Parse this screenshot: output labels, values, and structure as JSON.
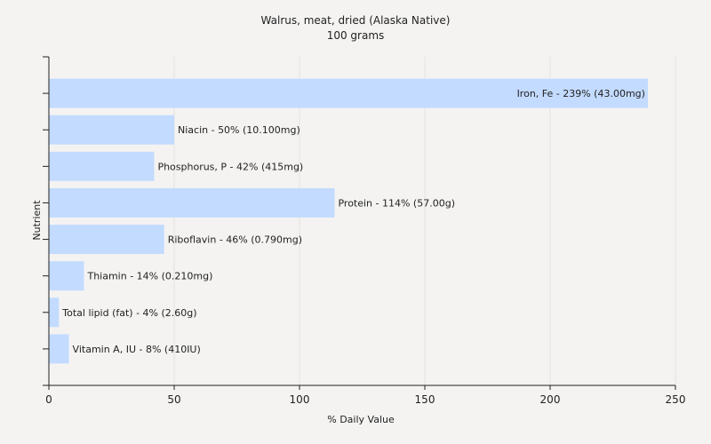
{
  "chart_data": {
    "type": "bar",
    "orientation": "horizontal",
    "title": "Walrus, meat, dried (Alaska Native)",
    "subtitle": "100 grams",
    "xlabel": "% Daily Value",
    "ylabel": "Nutrient",
    "xlim": [
      0,
      250
    ],
    "xticks": [
      0,
      50,
      100,
      150,
      200,
      250
    ],
    "grid": true,
    "bar_color": "#c3dbff",
    "categories": [
      "Iron, Fe",
      "Niacin",
      "Phosphorus, P",
      "Protein",
      "Riboflavin",
      "Thiamin",
      "Total lipid (fat)",
      "Vitamin A, IU"
    ],
    "values": [
      239,
      50,
      42,
      114,
      46,
      14,
      4,
      8
    ],
    "labels": [
      "Iron, Fe - 239% (43.00mg)",
      "Niacin - 50% (10.100mg)",
      "Phosphorus, P - 42% (415mg)",
      "Protein - 114% (57.00g)",
      "Riboflavin - 46% (0.790mg)",
      "Thiamin - 14% (0.210mg)",
      "Total lipid (fat) - 4% (2.60g)",
      "Vitamin A, IU - 8% (410IU)"
    ]
  }
}
